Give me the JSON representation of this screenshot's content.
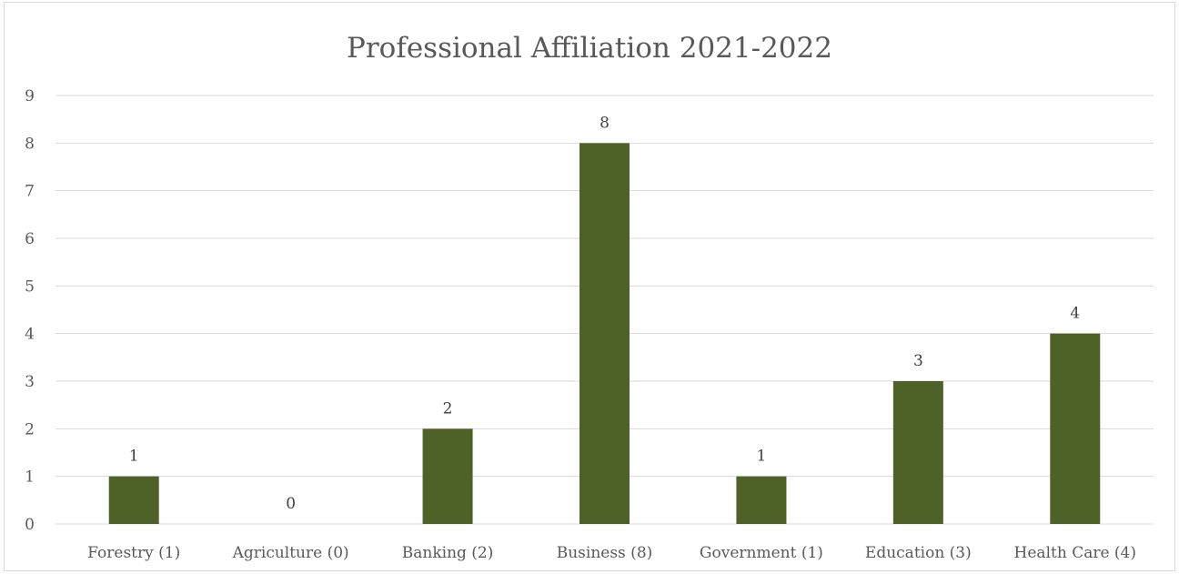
{
  "chart_data": {
    "type": "bar",
    "title": "Professional Affiliation 2021-2022",
    "categories": [
      "Forestry (1)",
      "Agriculture (0)",
      "Banking (2)",
      "Business (8)",
      "Government (1)",
      "Education (3)",
      "Health Care (4)"
    ],
    "values": [
      1,
      0,
      2,
      8,
      1,
      3,
      4
    ],
    "ylim": [
      0,
      9
    ],
    "yticks": [
      "0",
      "1",
      "2",
      "3",
      "4",
      "5",
      "6",
      "7",
      "8",
      "9"
    ],
    "xlabel": "",
    "ylabel": "",
    "grid": true,
    "legend": "none",
    "data_labels": true,
    "colors": {
      "bar": "#4e6228",
      "grid": "#d9d9d9",
      "axis": "#d9d9d9",
      "text": "#595959"
    }
  }
}
